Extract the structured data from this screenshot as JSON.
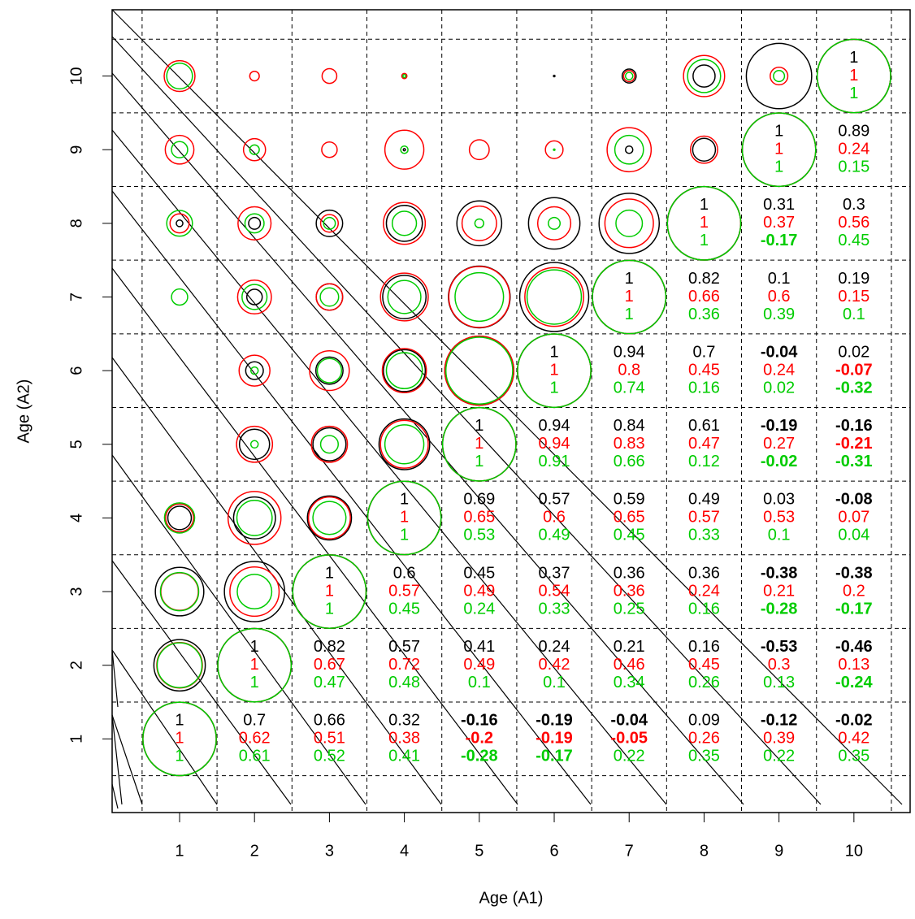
{
  "chart_data": {
    "type": "correlation-matrix",
    "xlabel": "Age (A1)",
    "ylabel": "Age (A2)",
    "xlim": [
      0.1,
      10.75
    ],
    "ylim": [
      0,
      10.9
    ],
    "xticks": [
      1,
      2,
      3,
      4,
      5,
      6,
      7,
      8,
      9,
      10
    ],
    "yticks": [
      1,
      2,
      3,
      4,
      5,
      6,
      7,
      8,
      9,
      10
    ],
    "series": [
      {
        "color": "#000000",
        "values": [
          [
            1,
            0.7,
            0.66,
            0.32,
            -0.16,
            -0.19,
            -0.04,
            0.09,
            -0.12,
            -0.02
          ],
          [
            null,
            1,
            0.82,
            0.57,
            0.41,
            0.24,
            0.21,
            0.16,
            -0.53,
            -0.46
          ],
          [
            null,
            null,
            1,
            0.6,
            0.45,
            0.37,
            0.36,
            0.36,
            -0.38,
            -0.38
          ],
          [
            null,
            null,
            null,
            1,
            0.69,
            0.57,
            0.59,
            0.49,
            0.03,
            -0.08
          ],
          [
            null,
            null,
            null,
            null,
            1,
            0.94,
            0.84,
            0.61,
            -0.19,
            -0.16
          ],
          [
            null,
            null,
            null,
            null,
            null,
            1,
            0.94,
            0.7,
            -0.04,
            0.02
          ],
          [
            null,
            null,
            null,
            null,
            null,
            null,
            1,
            0.82,
            0.1,
            0.19
          ],
          [
            null,
            null,
            null,
            null,
            null,
            null,
            null,
            1,
            0.31,
            0.3
          ],
          [
            null,
            null,
            null,
            null,
            null,
            null,
            null,
            null,
            1,
            0.89
          ],
          [
            null,
            null,
            null,
            null,
            null,
            null,
            null,
            null,
            null,
            1
          ]
        ]
      },
      {
        "color": "#ff0000",
        "values": [
          [
            1,
            0.62,
            0.51,
            0.38,
            -0.2,
            -0.19,
            -0.05,
            0.26,
            0.39,
            0.42
          ],
          [
            null,
            1,
            0.67,
            0.72,
            0.49,
            0.42,
            0.46,
            0.45,
            0.3,
            0.13
          ],
          [
            null,
            null,
            1,
            0.57,
            0.49,
            0.54,
            0.36,
            0.24,
            0.21,
            0.2
          ],
          [
            null,
            null,
            null,
            1,
            0.65,
            0.6,
            0.65,
            0.57,
            0.53,
            0.07
          ],
          [
            null,
            null,
            null,
            null,
            1,
            0.94,
            0.83,
            0.47,
            0.27,
            -0.21
          ],
          [
            null,
            null,
            null,
            null,
            null,
            1,
            0.8,
            0.45,
            0.24,
            -0.07
          ],
          [
            null,
            null,
            null,
            null,
            null,
            null,
            1,
            0.66,
            0.6,
            0.15
          ],
          [
            null,
            null,
            null,
            null,
            null,
            null,
            null,
            1,
            0.37,
            0.56
          ],
          [
            null,
            null,
            null,
            null,
            null,
            null,
            null,
            null,
            1,
            0.24
          ],
          [
            null,
            null,
            null,
            null,
            null,
            null,
            null,
            null,
            null,
            1
          ]
        ]
      },
      {
        "color": "#00cc00",
        "values": [
          [
            1,
            0.61,
            0.52,
            0.41,
            -0.28,
            -0.17,
            0.22,
            0.35,
            0.22,
            0.35
          ],
          [
            null,
            1,
            0.47,
            0.48,
            0.1,
            0.1,
            0.34,
            0.26,
            0.13,
            -0.24
          ],
          [
            null,
            null,
            1,
            0.45,
            0.24,
            0.33,
            0.25,
            0.16,
            -0.28,
            -0.17
          ],
          [
            null,
            null,
            null,
            1,
            0.53,
            0.49,
            0.45,
            0.33,
            0.1,
            0.04
          ],
          [
            null,
            null,
            null,
            null,
            1,
            0.91,
            0.66,
            0.12,
            -0.02,
            -0.31
          ],
          [
            null,
            null,
            null,
            null,
            null,
            1,
            0.74,
            0.16,
            0.02,
            -0.32
          ],
          [
            null,
            null,
            null,
            null,
            null,
            null,
            1,
            0.36,
            0.39,
            0.1
          ],
          [
            null,
            null,
            null,
            null,
            null,
            null,
            null,
            1,
            -0.17,
            0.45
          ],
          [
            null,
            null,
            null,
            null,
            null,
            null,
            null,
            null,
            1,
            0.15
          ],
          [
            null,
            null,
            null,
            null,
            null,
            null,
            null,
            null,
            null,
            1
          ]
        ]
      }
    ]
  }
}
